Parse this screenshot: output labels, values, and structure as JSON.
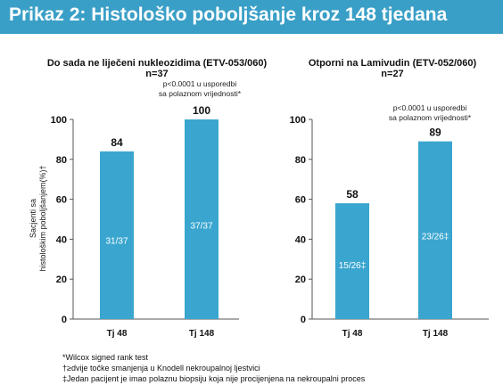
{
  "title": "Prikaz 2: Histološko poboljšanje kroz 148 tjedana",
  "colors": {
    "banner": "#3a9fc7",
    "bar": "#3aa6cf",
    "bar_label": "#ffffff"
  },
  "ylabel_lines": [
    "Sacjenti sa",
    "histološkim poboljšanjem(%)†"
  ],
  "chart_data": [
    {
      "type": "bar",
      "panel_title": "Do sada ne liječeni nukleozidima (ETV-053/060)",
      "n_label": "n=37",
      "categories": [
        "Tj 48",
        "Tj 148"
      ],
      "values": [
        84,
        100
      ],
      "value_labels": [
        "84",
        "100"
      ],
      "inner_labels": [
        "31/37",
        "37/37"
      ],
      "annotation": [
        "p<0.0001 u usporedbi",
        "sa polaznom vrijednosti*"
      ],
      "ylim": [
        0,
        100
      ],
      "yticks": [
        "0",
        "20",
        "40",
        "60",
        "80",
        "100"
      ]
    },
    {
      "type": "bar",
      "panel_title": "Otporni na Lamivudin (ETV-052/060)",
      "n_label": "n=27",
      "categories": [
        "Tj 48",
        "Tj 148"
      ],
      "values": [
        58,
        89
      ],
      "value_labels": [
        "58",
        "89"
      ],
      "inner_labels": [
        "15/26‡",
        "23/26‡"
      ],
      "annotation": [
        "p<0.0001 u usporedbi",
        "sa polaznom vrijednosti*"
      ],
      "ylim": [
        0,
        100
      ],
      "yticks": [
        "0",
        "20",
        "40",
        "60",
        "80",
        "100"
      ]
    }
  ],
  "footnotes": [
    "*Wilcox signed rank test",
    "†≥dvije točke smanjenja u Knodell nekroupalnoj ljestvici",
    "‡Jedan pacijent je imao polaznu biopsiju koja nije procijenjena na nekroupalni proces"
  ]
}
